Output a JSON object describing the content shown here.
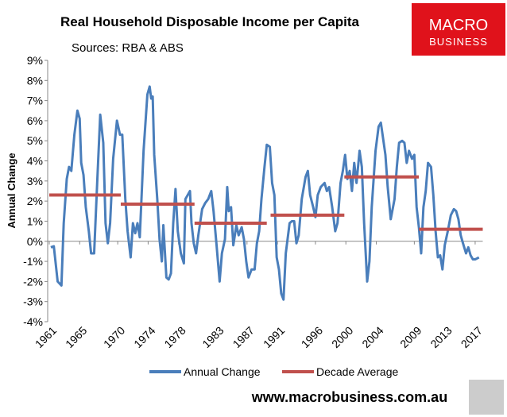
{
  "chart_data": {
    "type": "line",
    "title": "Real Household Disposable Income per Capita",
    "subtitle": "Sources: RBA & ABS",
    "y_label": "Annual Change",
    "footer": "www.macrobusiness.com.au",
    "logo": {
      "line1": "MACRO",
      "line2": "BUSINESS"
    },
    "xlim": [
      1961,
      2018
    ],
    "ylim": [
      -4,
      9
    ],
    "xticks": [
      1961,
      1965,
      1970,
      1974,
      1978,
      1983,
      1987,
      1991,
      1996,
      2000,
      2004,
      2009,
      2013,
      2017
    ],
    "yticks": [
      {
        "value": -4,
        "label": "-4%"
      },
      {
        "value": -3,
        "label": "-3%"
      },
      {
        "value": -2,
        "label": "-2%"
      },
      {
        "value": -1,
        "label": "-1%"
      },
      {
        "value": 0,
        "label": "0%"
      },
      {
        "value": 1,
        "label": "1%"
      },
      {
        "value": 2,
        "label": "2%"
      },
      {
        "value": 3,
        "label": "3%"
      },
      {
        "value": 4,
        "label": "4%"
      },
      {
        "value": 5,
        "label": "5%"
      },
      {
        "value": 6,
        "label": "6%"
      },
      {
        "value": 7,
        "label": "7%"
      },
      {
        "value": 8,
        "label": "8%"
      },
      {
        "value": 9,
        "label": "9%"
      }
    ],
    "grid": false,
    "legend": "bottom",
    "series": [
      {
        "name": "Annual Change",
        "color": "#4a7ebb",
        "x": [
          1961.2,
          1961.6,
          1962.1,
          1962.6,
          1962.9,
          1963.3,
          1963.6,
          1963.9,
          1964.3,
          1964.7,
          1965.0,
          1965.2,
          1965.5,
          1965.8,
          1966.2,
          1966.5,
          1966.9,
          1967.3,
          1967.7,
          1968.1,
          1968.4,
          1968.7,
          1969.0,
          1969.4,
          1969.9,
          1970.3,
          1970.6,
          1971.0,
          1971.3,
          1971.7,
          1972.0,
          1972.3,
          1972.6,
          1972.9,
          1973.1,
          1973.4,
          1973.9,
          1974.2,
          1974.4,
          1974.6,
          1974.8,
          1975.2,
          1975.5,
          1975.8,
          1976.0,
          1976.4,
          1976.7,
          1977.0,
          1977.3,
          1977.6,
          1977.9,
          1978.3,
          1978.7,
          1978.9,
          1979.2,
          1979.5,
          1979.7,
          1980.0,
          1980.3,
          1980.6,
          1981.1,
          1981.5,
          1981.9,
          1982.3,
          1982.6,
          1983.0,
          1983.4,
          1983.7,
          1984.1,
          1984.4,
          1984.6,
          1984.9,
          1985.2,
          1985.6,
          1985.9,
          1986.3,
          1986.6,
          1986.9,
          1987.2,
          1987.6,
          1988.0,
          1988.3,
          1988.6,
          1988.9,
          1989.3,
          1989.6,
          1990.0,
          1990.3,
          1990.6,
          1990.9,
          1991.2,
          1991.5,
          1991.8,
          1992.1,
          1992.6,
          1992.9,
          1993.2,
          1993.5,
          1993.8,
          1994.2,
          1994.7,
          1995.0,
          1995.3,
          1995.7,
          1996.0,
          1996.3,
          1996.7,
          1997.2,
          1997.5,
          1997.8,
          1998.2,
          1998.6,
          1998.9,
          1999.3,
          1999.6,
          1999.9,
          2000.2,
          2000.5,
          2000.8,
          2001.1,
          2001.4,
          2001.8,
          2002.1,
          2002.4,
          2002.8,
          2003.1,
          2003.4,
          2003.9,
          2004.3,
          2004.6,
          2004.9,
          2005.2,
          2005.5,
          2005.9,
          2006.4,
          2006.7,
          2007.0,
          2007.4,
          2007.7,
          2008.0,
          2008.3,
          2008.7,
          2009.0,
          2009.3,
          2009.6,
          2009.9,
          2010.2,
          2010.5,
          2010.8,
          2011.2,
          2011.5,
          2011.8,
          2012.1,
          2012.4,
          2012.7,
          2013.0,
          2013.4,
          2013.8,
          2014.2,
          2014.5,
          2014.8,
          2015.1,
          2015.4,
          2015.8,
          2016.1,
          2016.4,
          2016.7,
          2017.0,
          2017.5
        ],
        "values": [
          -0.3,
          -0.25,
          -2.0,
          -2.2,
          0.9,
          3.1,
          3.7,
          3.5,
          5.3,
          6.5,
          6.1,
          3.9,
          3.3,
          1.7,
          0.5,
          -0.6,
          -0.6,
          2.9,
          6.3,
          4.9,
          0.9,
          -0.1,
          0.9,
          4.1,
          6.0,
          5.3,
          5.3,
          2.1,
          0.5,
          -0.8,
          0.9,
          0.4,
          0.9,
          0.2,
          1.9,
          4.5,
          7.3,
          7.7,
          7.1,
          7.2,
          4.3,
          2.1,
          0.1,
          -1.0,
          0.8,
          -1.8,
          -1.9,
          -1.6,
          0.9,
          2.6,
          0.5,
          -0.6,
          -1.1,
          2.1,
          2.3,
          2.5,
          0.9,
          -0.1,
          -0.6,
          0.3,
          1.6,
          1.9,
          2.1,
          2.5,
          1.5,
          -0.2,
          -2.0,
          -0.6,
          0.1,
          2.7,
          1.5,
          1.7,
          -0.2,
          0.8,
          0.3,
          0.7,
          0.1,
          -1.0,
          -1.8,
          -1.4,
          -1.4,
          -0.1,
          0.5,
          2.1,
          3.7,
          4.8,
          4.7,
          2.9,
          2.3,
          -0.8,
          -1.4,
          -2.6,
          -2.9,
          -0.6,
          0.9,
          1.0,
          1.0,
          -0.1,
          0.3,
          2.1,
          3.2,
          3.5,
          2.3,
          1.7,
          1.2,
          2.3,
          2.7,
          2.9,
          2.5,
          2.7,
          1.7,
          0.5,
          0.9,
          2.9,
          3.5,
          4.3,
          3.1,
          3.5,
          2.5,
          3.9,
          2.9,
          4.5,
          3.7,
          0.9,
          -2.0,
          -1.0,
          1.7,
          4.5,
          5.7,
          5.9,
          5.1,
          4.3,
          2.7,
          1.1,
          2.1,
          3.7,
          4.9,
          5.0,
          4.9,
          3.9,
          4.5,
          4.1,
          4.3,
          1.7,
          0.7,
          -0.6,
          1.7,
          2.5,
          3.9,
          3.7,
          2.3,
          0.5,
          -0.8,
          -0.7,
          -1.4,
          -0.2,
          0.5,
          1.3,
          1.6,
          1.5,
          1.1,
          0.3,
          -0.1,
          -0.6,
          -0.3,
          -0.7,
          -0.9,
          -0.9,
          -0.8
        ]
      },
      {
        "name": "Decade Average",
        "color": "#c0504d",
        "x_ranges": [
          [
            1961,
            1970.4
          ],
          [
            1970.4,
            1980.1
          ],
          [
            1980.1,
            1989.6
          ],
          [
            1990.1,
            1999.8
          ],
          [
            1999.8,
            2009.6
          ],
          [
            2009.6,
            2018
          ]
        ],
        "values": [
          2.3,
          1.85,
          0.9,
          1.3,
          3.2,
          0.6
        ]
      }
    ]
  }
}
